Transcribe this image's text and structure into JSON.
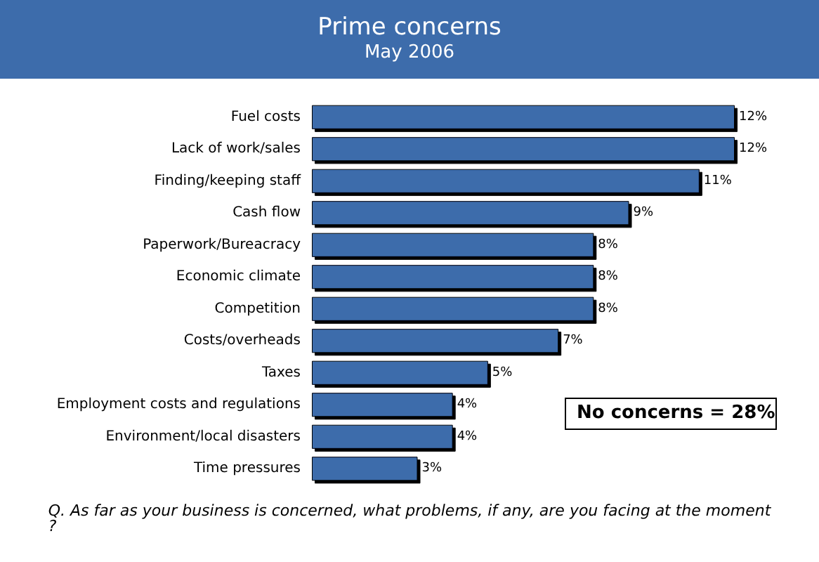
{
  "chart_data": {
    "type": "bar",
    "orientation": "horizontal",
    "title": "Prime concerns",
    "subtitle": "May 2006",
    "categories": [
      "Fuel costs",
      "Lack of work/sales",
      "Finding/keeping staff",
      "Cash flow",
      "Paperwork/Bureacracy",
      "Economic climate",
      "Competition",
      "Costs/overheads",
      "Taxes",
      "Employment costs and regulations",
      "Environment/local disasters",
      "Time pressures"
    ],
    "values": [
      12,
      12,
      11,
      9,
      8,
      8,
      8,
      7,
      5,
      4,
      4,
      3
    ],
    "value_labels": [
      "12%",
      "12%",
      "11%",
      "9%",
      "8%",
      "8%",
      "8%",
      "7%",
      "5%",
      "4%",
      "4%",
      "3%"
    ],
    "color": "#3d6cab",
    "annotations": [
      "No concerns = 28%",
      "Q. As far as your business is concerned, what problems, if any, are you facing at the moment?"
    ]
  }
}
